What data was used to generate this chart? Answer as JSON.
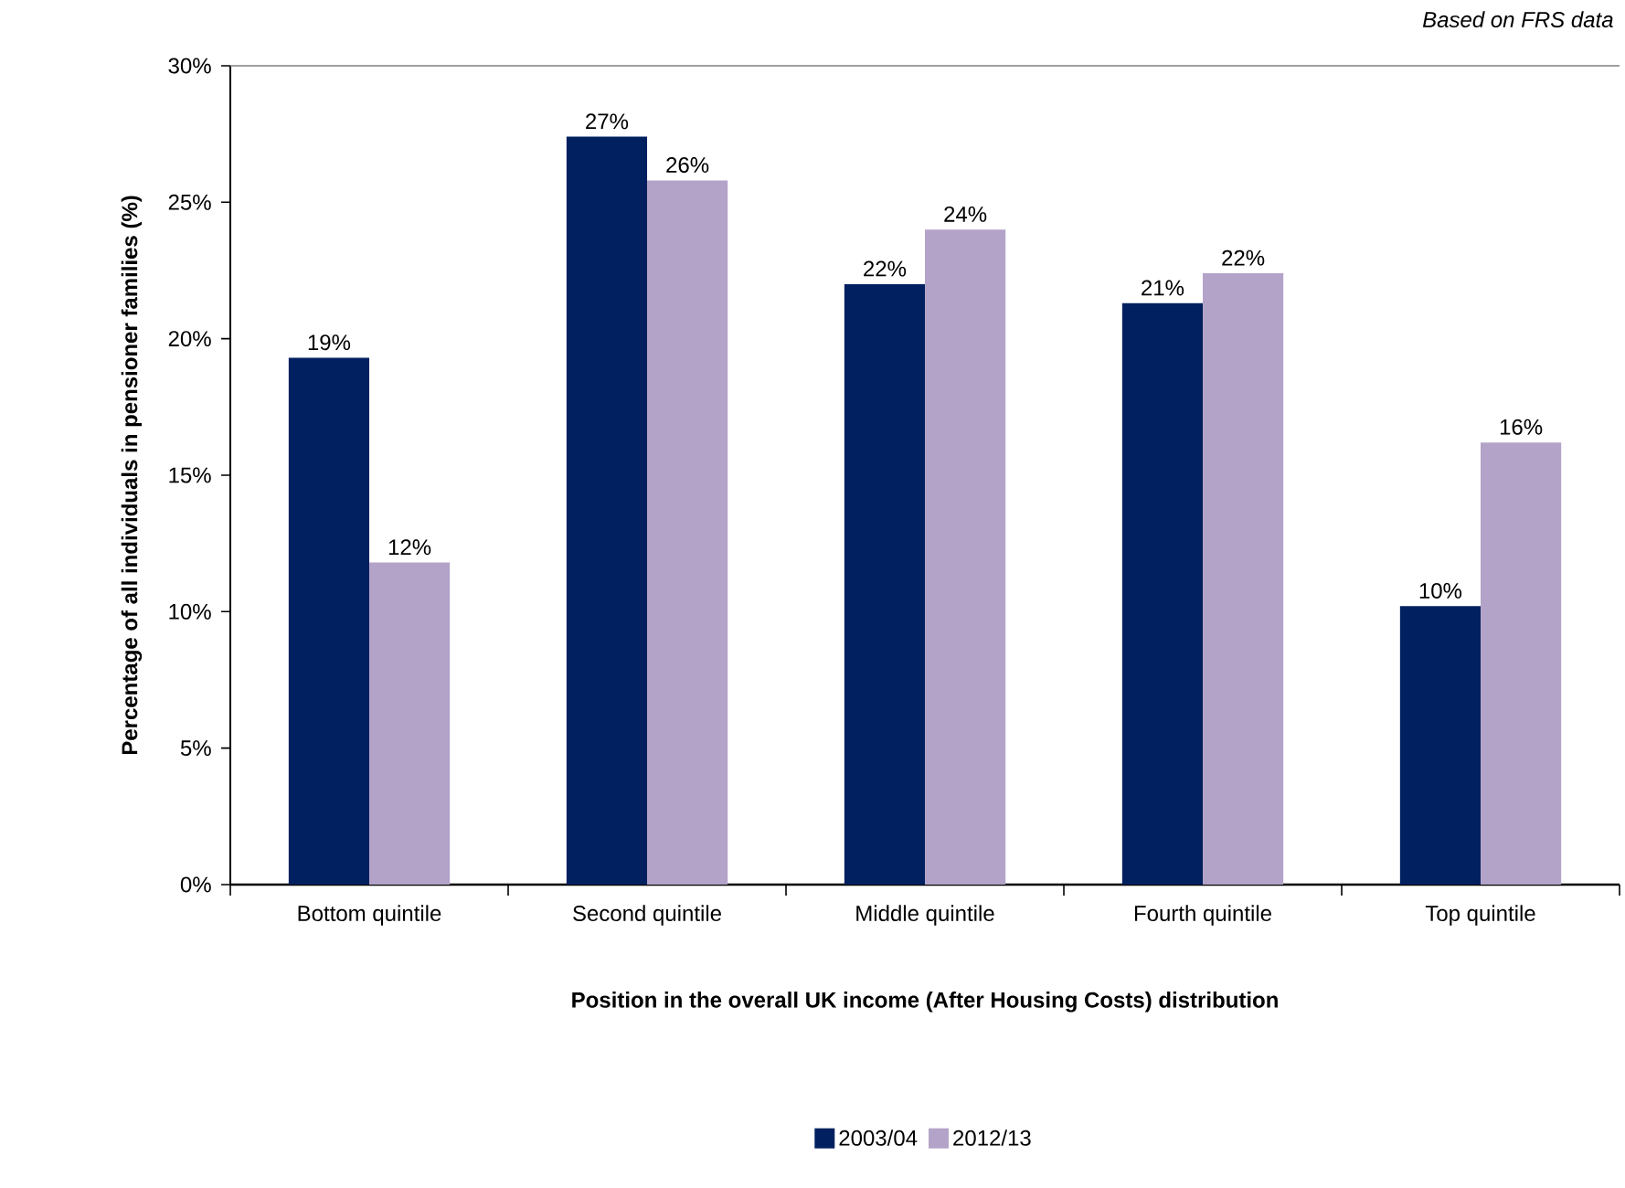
{
  "chart_data": {
    "type": "bar",
    "categories": [
      "Bottom quintile",
      "Second quintile",
      "Middle quintile",
      "Fourth quintile",
      "Top quintile"
    ],
    "series": [
      {
        "name": "2003/04",
        "color": "#00205f",
        "values": [
          19.3,
          27.4,
          22.0,
          21.3,
          10.2
        ],
        "value_labels": [
          "19%",
          "27%",
          "22%",
          "21%",
          "10%"
        ]
      },
      {
        "name": "2012/13",
        "color": "#b3a3c8",
        "values": [
          11.8,
          25.8,
          24.0,
          22.4,
          16.2
        ],
        "value_labels": [
          "12%",
          "26%",
          "24%",
          "22%",
          "16%"
        ]
      }
    ],
    "xlabel": "Position in the overall UK income (After Housing Costs) distribution",
    "ylabel": "Percentage of all individuals  in pensioner families (%)",
    "annotations": [
      "Based on FRS data"
    ],
    "ylim": [
      0,
      30
    ],
    "yticks": [
      {
        "value": 0,
        "label": "0%"
      },
      {
        "value": 5,
        "label": "5%"
      },
      {
        "value": 10,
        "label": "10%"
      },
      {
        "value": 15,
        "label": "15%"
      },
      {
        "value": 20,
        "label": "20%"
      },
      {
        "value": 25,
        "label": "25%"
      },
      {
        "value": 30,
        "label": "30%"
      }
    ],
    "grid": false,
    "legend": "bottom"
  }
}
